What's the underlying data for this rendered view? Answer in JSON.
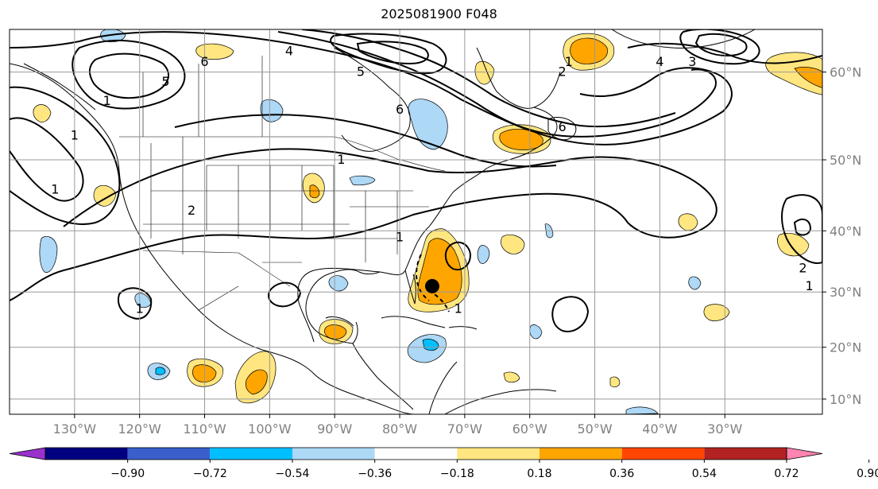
{
  "title": "2025081900 F048",
  "map": {
    "projection": "Mercator",
    "lon_range": [
      -140,
      -15
    ],
    "lat_range": [
      7,
      64
    ],
    "lon_ticks": [
      {
        "value": -130,
        "label": "130°W"
      },
      {
        "value": -120,
        "label": "120°W"
      },
      {
        "value": -110,
        "label": "110°W"
      },
      {
        "value": -100,
        "label": "100°W"
      },
      {
        "value": -90,
        "label": "90°W"
      },
      {
        "value": -80,
        "label": "80°W"
      },
      {
        "value": -70,
        "label": "70°W"
      },
      {
        "value": -60,
        "label": "60°W"
      },
      {
        "value": -50,
        "label": "50°W"
      },
      {
        "value": -40,
        "label": "40°W"
      },
      {
        "value": -30,
        "label": "30°W"
      }
    ],
    "lat_ticks": [
      {
        "value": 60,
        "label": "60°N"
      },
      {
        "value": 50,
        "label": "50°N"
      },
      {
        "value": 40,
        "label": "40°N"
      },
      {
        "value": 30,
        "label": "30°N"
      },
      {
        "value": 20,
        "label": "20°N"
      },
      {
        "value": 10,
        "label": "10°N"
      }
    ],
    "storm_center": {
      "lon": -75,
      "lat": 31,
      "symbol": "tropical-cyclone-dot"
    },
    "contour_labels": [
      {
        "text": "6",
        "lon": -110,
        "lat": 61
      },
      {
        "text": "4",
        "lon": -97,
        "lat": 62
      },
      {
        "text": "5",
        "lon": -116,
        "lat": 59
      },
      {
        "text": "1",
        "lon": -125,
        "lat": 57
      },
      {
        "text": "1",
        "lon": -130,
        "lat": 53
      },
      {
        "text": "1",
        "lon": -133,
        "lat": 46
      },
      {
        "text": "2",
        "lon": -112,
        "lat": 43
      },
      {
        "text": "1",
        "lon": -89,
        "lat": 50
      },
      {
        "text": "5",
        "lon": -86,
        "lat": 60
      },
      {
        "text": "6",
        "lon": -80,
        "lat": 56
      },
      {
        "text": "1",
        "lon": -80,
        "lat": 39
      },
      {
        "text": "2",
        "lon": -55,
        "lat": 60
      },
      {
        "text": "1",
        "lon": -54,
        "lat": 61
      },
      {
        "text": "6",
        "lon": -55,
        "lat": 54
      },
      {
        "text": "4",
        "lon": -40,
        "lat": 61
      },
      {
        "text": "3",
        "lon": -35,
        "lat": 61
      },
      {
        "text": "1",
        "lon": -120,
        "lat": 27
      },
      {
        "text": "1",
        "lon": -71,
        "lat": 27
      },
      {
        "text": "1",
        "lon": -17,
        "lat": 31
      },
      {
        "text": "2",
        "lon": -18,
        "lat": 34
      }
    ]
  },
  "chart_data": {
    "type": "contour-map",
    "title": "2025081900 F048",
    "colorbar": {
      "ticks": [
        "−0.90",
        "−0.72",
        "−0.54",
        "−0.36",
        "−0.18",
        "0.18",
        "0.36",
        "0.54",
        "0.72",
        "0.90"
      ],
      "tick_values": [
        -0.9,
        -0.72,
        -0.54,
        -0.36,
        -0.18,
        0.18,
        0.36,
        0.54,
        0.72,
        0.9
      ],
      "colors": [
        "#9932cc",
        "#000080",
        "#3a5fcd",
        "#00bfff",
        "#add8f6",
        "#ffffff",
        "#ffe680",
        "#ffa500",
        "#ff4500",
        "#b22222",
        "#ff85b0"
      ],
      "extend": "both"
    },
    "line_contours": "black solid lines (values 1–6)",
    "shaded_field": "anomaly shading centered near 31°N 75°W (storm)"
  },
  "colors": {
    "frame": "#000000",
    "grid": "#999999",
    "tick_text": "#808080"
  }
}
